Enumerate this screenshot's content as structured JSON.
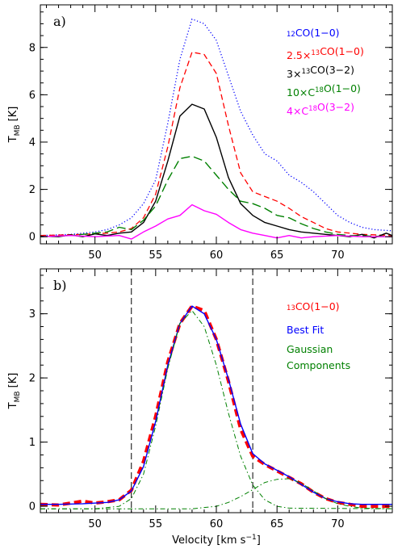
{
  "chart_data": [
    {
      "type": "line",
      "panel_label": "a)",
      "ylabel": "T_MB [K]",
      "xlim": [
        45.5,
        74.5
      ],
      "ylim": [
        -0.3,
        9.8
      ],
      "xticks": [
        50,
        55,
        60,
        65,
        70
      ],
      "yticks": [
        0,
        2,
        4,
        6,
        8
      ],
      "legend_position": "top-right",
      "series": [
        {
          "name": "12CO(1-0)",
          "label_parts": [
            {
              "t": "",
              "s": "12"
            },
            {
              "t": "CO(1−0)"
            }
          ],
          "color": "#0000ff",
          "style": "dotted",
          "points": [
            [
              45.5,
              0.05
            ],
            [
              48,
              0.1
            ],
            [
              50,
              0.2
            ],
            [
              51,
              0.3
            ],
            [
              52,
              0.5
            ],
            [
              53,
              0.8
            ],
            [
              54,
              1.4
            ],
            [
              55,
              2.4
            ],
            [
              56,
              4.8
            ],
            [
              57,
              7.5
            ],
            [
              58,
              9.2
            ],
            [
              59,
              9.0
            ],
            [
              60,
              8.3
            ],
            [
              61,
              6.8
            ],
            [
              62,
              5.3
            ],
            [
              63,
              4.3
            ],
            [
              64,
              3.5
            ],
            [
              65,
              3.2
            ],
            [
              66,
              2.6
            ],
            [
              67,
              2.3
            ],
            [
              68,
              1.9
            ],
            [
              69,
              1.4
            ],
            [
              70,
              0.9
            ],
            [
              71,
              0.6
            ],
            [
              72,
              0.4
            ],
            [
              73,
              0.3
            ],
            [
              74.5,
              0.25
            ]
          ]
        },
        {
          "name": "2.5x13CO(1-0)",
          "label_parts": [
            {
              "t": "2.5×"
            },
            {
              "t": "",
              "s": "13"
            },
            {
              "t": "CO(1−0)"
            }
          ],
          "color": "#ff0000",
          "style": "dashed",
          "points": [
            [
              45.5,
              0.05
            ],
            [
              49,
              0.1
            ],
            [
              51,
              0.15
            ],
            [
              52,
              0.2
            ],
            [
              53,
              0.35
            ],
            [
              54,
              0.8
            ],
            [
              55,
              1.8
            ],
            [
              56,
              3.8
            ],
            [
              57,
              6.3
            ],
            [
              58,
              7.8
            ],
            [
              59,
              7.7
            ],
            [
              60,
              6.9
            ],
            [
              61,
              4.7
            ],
            [
              62,
              2.7
            ],
            [
              63,
              1.9
            ],
            [
              64,
              1.7
            ],
            [
              65,
              1.5
            ],
            [
              66,
              1.2
            ],
            [
              67,
              0.85
            ],
            [
              68,
              0.6
            ],
            [
              69,
              0.35
            ],
            [
              70,
              0.2
            ],
            [
              71,
              0.15
            ],
            [
              72,
              0.1
            ],
            [
              74.5,
              0.05
            ]
          ]
        },
        {
          "name": "3x13CO(3-2)",
          "label_parts": [
            {
              "t": "3×"
            },
            {
              "t": "",
              "s": "13"
            },
            {
              "t": "CO(3−2)"
            }
          ],
          "color": "#000000",
          "style": "solid",
          "points": [
            [
              45.5,
              0.02
            ],
            [
              47,
              0.0
            ],
            [
              48,
              0.08
            ],
            [
              49,
              0.0
            ],
            [
              50,
              0.12
            ],
            [
              51,
              0.05
            ],
            [
              52,
              0.15
            ],
            [
              53,
              0.2
            ],
            [
              54,
              0.6
            ],
            [
              55,
              1.5
            ],
            [
              56,
              3.2
            ],
            [
              57,
              5.1
            ],
            [
              58,
              5.6
            ],
            [
              59,
              5.4
            ],
            [
              60,
              4.2
            ],
            [
              61,
              2.5
            ],
            [
              62,
              1.4
            ],
            [
              63,
              0.9
            ],
            [
              64,
              0.6
            ],
            [
              65,
              0.45
            ],
            [
              66,
              0.3
            ],
            [
              67,
              0.2
            ],
            [
              68,
              0.15
            ],
            [
              69,
              0.1
            ],
            [
              70,
              0.05
            ],
            [
              71,
              0.0
            ],
            [
              72,
              0.1
            ],
            [
              73,
              -0.05
            ],
            [
              74,
              0.15
            ],
            [
              74.5,
              0.05
            ]
          ]
        },
        {
          "name": "10xC18O(1-0)",
          "label_parts": [
            {
              "t": "10×C"
            },
            {
              "t": "",
              "s": "18"
            },
            {
              "t": "O(1−0)"
            }
          ],
          "color": "#008000",
          "style": "longdash",
          "points": [
            [
              45.5,
              0.0
            ],
            [
              48,
              0.05
            ],
            [
              50,
              0.15
            ],
            [
              51,
              0.2
            ],
            [
              52,
              0.4
            ],
            [
              53,
              0.3
            ],
            [
              54,
              0.7
            ],
            [
              55,
              1.3
            ],
            [
              56,
              2.4
            ],
            [
              57,
              3.3
            ],
            [
              58,
              3.4
            ],
            [
              59,
              3.2
            ],
            [
              60,
              2.6
            ],
            [
              61,
              2.0
            ],
            [
              62,
              1.5
            ],
            [
              63,
              1.4
            ],
            [
              64,
              1.2
            ],
            [
              65,
              0.9
            ],
            [
              66,
              0.8
            ],
            [
              67,
              0.55
            ],
            [
              68,
              0.35
            ],
            [
              69,
              0.2
            ],
            [
              70,
              0.1
            ],
            [
              71,
              0.05
            ],
            [
              74.5,
              0.0
            ]
          ]
        },
        {
          "name": "4xC18O(3-2)",
          "label_parts": [
            {
              "t": "4×C"
            },
            {
              "t": "",
              "s": "18"
            },
            {
              "t": "O(3−2)"
            }
          ],
          "color": "#ff00ff",
          "style": "solid",
          "points": [
            [
              45.5,
              0.0
            ],
            [
              48,
              0.05
            ],
            [
              50,
              0.0
            ],
            [
              52,
              0.05
            ],
            [
              53,
              -0.1
            ],
            [
              54,
              0.2
            ],
            [
              55,
              0.45
            ],
            [
              56,
              0.75
            ],
            [
              57,
              0.9
            ],
            [
              58,
              1.35
            ],
            [
              59,
              1.1
            ],
            [
              60,
              0.95
            ],
            [
              61,
              0.6
            ],
            [
              62,
              0.3
            ],
            [
              63,
              0.15
            ],
            [
              64,
              0.05
            ],
            [
              65,
              -0.05
            ],
            [
              66,
              0.05
            ],
            [
              67,
              -0.05
            ],
            [
              68,
              0.0
            ],
            [
              70,
              0.05
            ],
            [
              72,
              0.0
            ],
            [
              74.5,
              0.0
            ]
          ]
        }
      ]
    },
    {
      "type": "line",
      "panel_label": "b)",
      "xlabel": "Velocity [km s⁻¹]",
      "ylabel": "T_MB [K]",
      "xlim": [
        45.5,
        74.5
      ],
      "ylim": [
        -0.1,
        3.7
      ],
      "xticks": [
        50,
        55,
        60,
        65,
        70
      ],
      "yticks": [
        0,
        1,
        2,
        3
      ],
      "legend_position": "top-right",
      "vertical_lines": [
        53,
        63
      ],
      "series": [
        {
          "name": "13CO(1-0)",
          "label_parts": [
            {
              "t": "",
              "s": "13"
            },
            {
              "t": "CO(1−0)"
            }
          ],
          "color": "#ff0000",
          "style": "thickdash",
          "points": [
            [
              45.5,
              0.03
            ],
            [
              47,
              0.02
            ],
            [
              48,
              0.05
            ],
            [
              49,
              0.08
            ],
            [
              50,
              0.05
            ],
            [
              51,
              0.07
            ],
            [
              52,
              0.1
            ],
            [
              53,
              0.25
            ],
            [
              54,
              0.7
            ],
            [
              55,
              1.4
            ],
            [
              56,
              2.25
            ],
            [
              57,
              2.85
            ],
            [
              58,
              3.12
            ],
            [
              59,
              3.05
            ],
            [
              60,
              2.6
            ],
            [
              61,
              1.95
            ],
            [
              62,
              1.2
            ],
            [
              63,
              0.78
            ],
            [
              64,
              0.65
            ],
            [
              65,
              0.55
            ],
            [
              66,
              0.45
            ],
            [
              67,
              0.35
            ],
            [
              68,
              0.22
            ],
            [
              69,
              0.12
            ],
            [
              70,
              0.06
            ],
            [
              71,
              0.03
            ],
            [
              72,
              0.0
            ],
            [
              73,
              0.0
            ],
            [
              74.5,
              0.0
            ]
          ]
        },
        {
          "name": "Best Fit",
          "label_parts": [
            {
              "t": "Best Fit"
            }
          ],
          "color": "#0000ff",
          "style": "solid",
          "points": [
            [
              45.5,
              0.03
            ],
            [
              47,
              0.03
            ],
            [
              49,
              0.04
            ],
            [
              51,
              0.06
            ],
            [
              52,
              0.1
            ],
            [
              53,
              0.24
            ],
            [
              54,
              0.62
            ],
            [
              55,
              1.32
            ],
            [
              56,
              2.2
            ],
            [
              57,
              2.85
            ],
            [
              58,
              3.12
            ],
            [
              59,
              3.0
            ],
            [
              60,
              2.6
            ],
            [
              61,
              1.98
            ],
            [
              62,
              1.28
            ],
            [
              63,
              0.82
            ],
            [
              64,
              0.66
            ],
            [
              65,
              0.56
            ],
            [
              66,
              0.46
            ],
            [
              67,
              0.34
            ],
            [
              68,
              0.22
            ],
            [
              69,
              0.12
            ],
            [
              70,
              0.07
            ],
            [
              71,
              0.04
            ],
            [
              72,
              0.03
            ],
            [
              74.5,
              0.03
            ]
          ]
        },
        {
          "name": "Gaussian Components",
          "label_parts": [
            {
              "t": "Gaussian"
            }
          ],
          "label2": "Components",
          "color": "#008000",
          "style": "dashdot",
          "points": [
            [
              45.5,
              -0.04
            ],
            [
              50,
              -0.04
            ],
            [
              52,
              0.0
            ],
            [
              53,
              0.12
            ],
            [
              54,
              0.5
            ],
            [
              55,
              1.25
            ],
            [
              56,
              2.15
            ],
            [
              57,
              2.85
            ],
            [
              58,
              3.05
            ],
            [
              59,
              2.8
            ],
            [
              60,
              2.2
            ],
            [
              61,
              1.45
            ],
            [
              62,
              0.78
            ],
            [
              63,
              0.33
            ],
            [
              64,
              0.1
            ],
            [
              65,
              0.0
            ],
            [
              66,
              -0.03
            ],
            [
              74.5,
              -0.04
            ]
          ]
        },
        {
          "name": "Gaussian component 2",
          "color": "#008000",
          "style": "dashdot",
          "points": [
            [
              45.5,
              -0.04
            ],
            [
              58,
              -0.04
            ],
            [
              60,
              0.0
            ],
            [
              61,
              0.06
            ],
            [
              62,
              0.15
            ],
            [
              63,
              0.26
            ],
            [
              64,
              0.37
            ],
            [
              65,
              0.42
            ],
            [
              66,
              0.43
            ],
            [
              67,
              0.36
            ],
            [
              68,
              0.24
            ],
            [
              69,
              0.12
            ],
            [
              70,
              0.04
            ],
            [
              71,
              0.0
            ],
            [
              72,
              -0.03
            ],
            [
              74.5,
              -0.04
            ]
          ]
        }
      ]
    }
  ]
}
